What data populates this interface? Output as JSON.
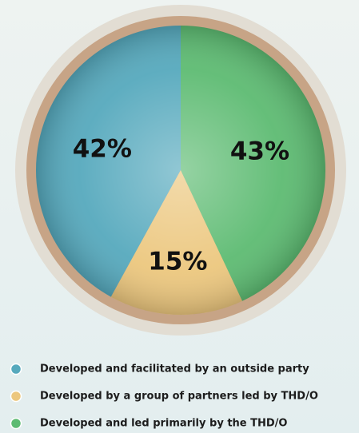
{
  "chart_data": {
    "type": "pie",
    "categories": [
      "Developed and facilitated by an outside party",
      "Developed by a group of partners led by THD/O",
      "Developed and led primarily by the THD/O"
    ],
    "values": [
      42,
      15,
      43
    ],
    "value_labels": [
      "42%",
      "15%",
      "43%"
    ],
    "colors": [
      "#56a9bd",
      "#ecc77e",
      "#5dbb72"
    ]
  }
}
